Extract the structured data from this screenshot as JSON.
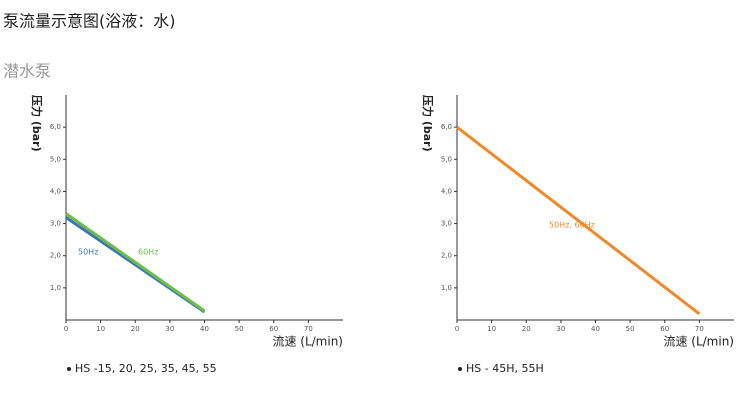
{
  "page": {
    "title": "泵流量示意图(浴液：水)",
    "subtitle": "潜水泵"
  },
  "chart_data": [
    {
      "type": "line",
      "ylabel": "压力 (bar)",
      "xlabel": "流速 (L/min)",
      "xlim": [
        0,
        80
      ],
      "ylim": [
        0,
        7
      ],
      "xticks": [
        0,
        10,
        20,
        30,
        40,
        50,
        60,
        70
      ],
      "yticks": [
        {
          "value": 1,
          "label": "1,0"
        },
        {
          "value": 2,
          "label": "2,0"
        },
        {
          "value": 3,
          "label": "3,0"
        },
        {
          "value": 4,
          "label": "4,0"
        },
        {
          "value": 5,
          "label": "5,0"
        },
        {
          "value": 6,
          "label": "6,0"
        }
      ],
      "x": [
        0,
        40
      ],
      "series": [
        {
          "name": "50Hz",
          "color": "#3a75b8",
          "values": [
            3.19,
            0.25
          ]
        },
        {
          "name": "60Hz",
          "color": "#6cc04a",
          "values": [
            3.31,
            0.28
          ]
        }
      ],
      "note": "HS -15, 20, 25, 35, 45, 55"
    },
    {
      "type": "line",
      "ylabel": "压力 (bar)",
      "xlabel": "流速 (L/min)",
      "xlim": [
        0,
        80
      ],
      "ylim": [
        0,
        7
      ],
      "xticks": [
        0,
        10,
        20,
        30,
        40,
        50,
        60,
        70
      ],
      "yticks": [
        {
          "value": 1,
          "label": "1,0"
        },
        {
          "value": 2,
          "label": "2,0"
        },
        {
          "value": 3,
          "label": "3,0"
        },
        {
          "value": 4,
          "label": "4,0"
        },
        {
          "value": 5,
          "label": "5,0"
        },
        {
          "value": 6,
          "label": "6,0"
        }
      ],
      "x": [
        0,
        70
      ],
      "series": [
        {
          "name": "50Hz, 60Hz",
          "color": "#f0892a",
          "values": [
            6.0,
            0.19
          ]
        }
      ],
      "note": "HS - 45H, 55H"
    }
  ]
}
